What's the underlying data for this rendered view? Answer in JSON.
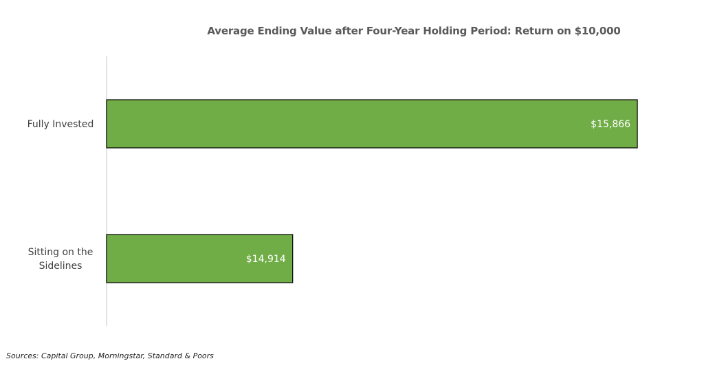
{
  "chart_data": {
    "type": "bar",
    "orientation": "horizontal",
    "title": "Average Ending Value after Four-Year Holding Period: Return on $10,000",
    "categories": [
      "Fully Invested",
      "Sitting on the Sidelines"
    ],
    "category_lines": [
      [
        "Fully Invested"
      ],
      [
        "Sitting on the",
        "Sidelines"
      ]
    ],
    "values": [
      15866,
      14914
    ],
    "value_labels": [
      "$15,866",
      "$14,914"
    ],
    "xlim": [
      14400,
      15900
    ],
    "grid": false,
    "legend": "none",
    "bar_color": "#70ad47",
    "bar_border_color": "#000000",
    "axis_color": "#d9d9d9"
  },
  "source_note": "Sources: Capital Group, Morningstar, Standard & Poors"
}
